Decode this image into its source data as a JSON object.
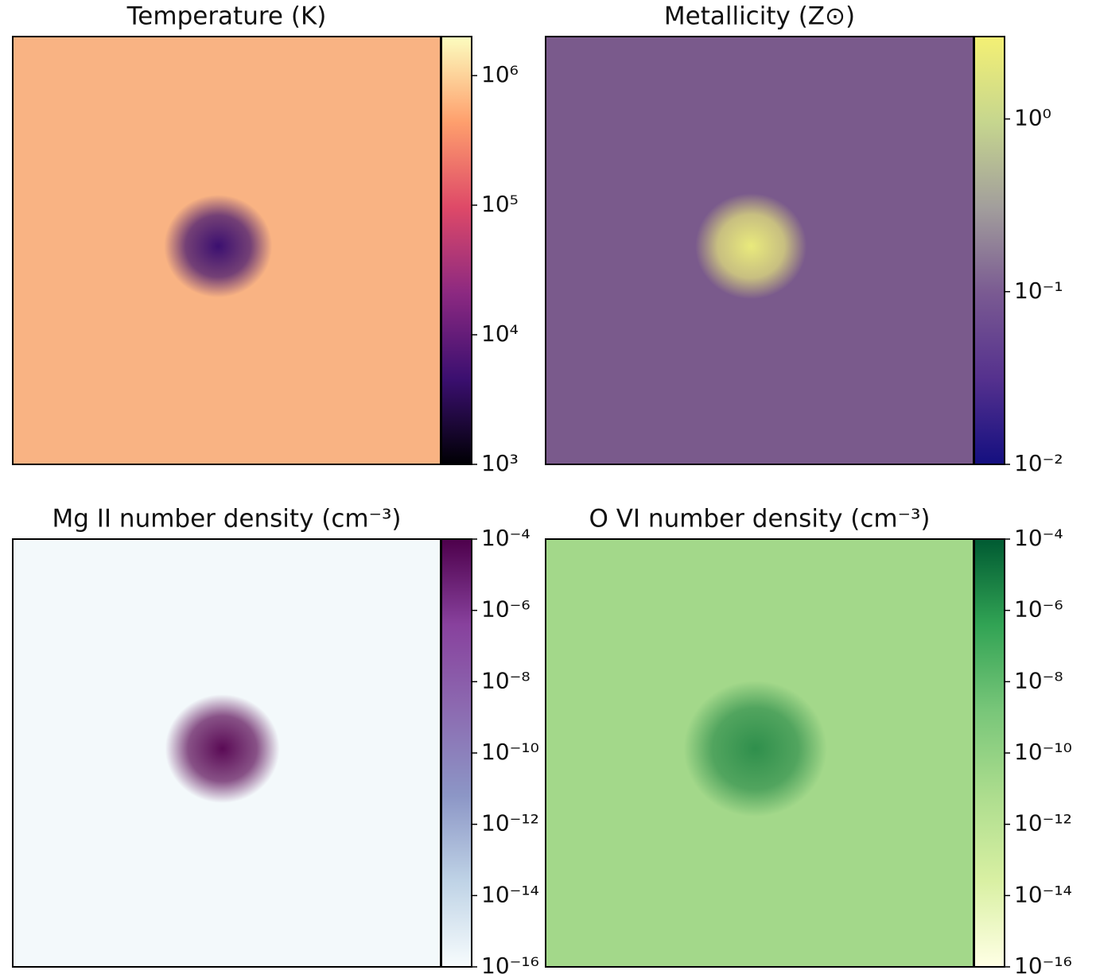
{
  "chart_data": [
    {
      "type": "image",
      "title": "Temperature (K)",
      "log_scale": true,
      "colormap": [
        "#000004",
        "#3b0f70",
        "#8c2981",
        "#de4968",
        "#fe9f6d",
        "#fcfdbf"
      ],
      "ylim": [
        1000,
        2000000
      ],
      "yticks": [
        {
          "value": 1000,
          "label": "10³"
        },
        {
          "value": 10000,
          "label": "10⁴"
        },
        {
          "value": 100000,
          "label": "10⁵"
        },
        {
          "value": 1000000,
          "label": "10⁶"
        }
      ]
    },
    {
      "type": "image",
      "title": "Metallicity (Z⊙)",
      "log_scale": true,
      "colormap": [
        "#140f80",
        "#55318e",
        "#7a5a92",
        "#a29e9c",
        "#c6d68e",
        "#f4f074"
      ],
      "ylim": [
        0.01,
        3
      ],
      "yticks": [
        {
          "value": 0.01,
          "label": "10⁻²"
        },
        {
          "value": 0.1,
          "label": "10⁻¹"
        },
        {
          "value": 1,
          "label": "10⁰"
        }
      ]
    },
    {
      "type": "image",
      "title": "Mg II number density (cm⁻³)",
      "log_scale": true,
      "colormap": [
        "#f7fcfd",
        "#bfd3e6",
        "#8c96c6",
        "#8c6bb1",
        "#88419d",
        "#4d004b"
      ],
      "ylim": [
        1e-16,
        0.0001
      ],
      "yticks": [
        {
          "value": 1e-16,
          "label": "10⁻¹⁶"
        },
        {
          "value": 1e-14,
          "label": "10⁻¹⁴"
        },
        {
          "value": 1e-12,
          "label": "10⁻¹²"
        },
        {
          "value": 1e-10,
          "label": "10⁻¹⁰"
        },
        {
          "value": 1e-08,
          "label": "10⁻⁸"
        },
        {
          "value": 1e-06,
          "label": "10⁻⁶"
        },
        {
          "value": 0.0001,
          "label": "10⁻⁴"
        }
      ]
    },
    {
      "type": "image",
      "title": "O VI number density (cm⁻³)",
      "log_scale": true,
      "colormap": [
        "#ffffe5",
        "#d9f0a3",
        "#addd8e",
        "#78c679",
        "#31a354",
        "#005a32"
      ],
      "ylim": [
        1e-16,
        0.0001
      ],
      "yticks": [
        {
          "value": 1e-16,
          "label": "10⁻¹⁶"
        },
        {
          "value": 1e-14,
          "label": "10⁻¹⁴"
        },
        {
          "value": 1e-12,
          "label": "10⁻¹²"
        },
        {
          "value": 1e-10,
          "label": "10⁻¹⁰"
        },
        {
          "value": 1e-08,
          "label": "10⁻⁸"
        },
        {
          "value": 1e-06,
          "label": "10⁻⁶"
        },
        {
          "value": 0.0001,
          "label": "10⁻⁴"
        }
      ]
    }
  ]
}
